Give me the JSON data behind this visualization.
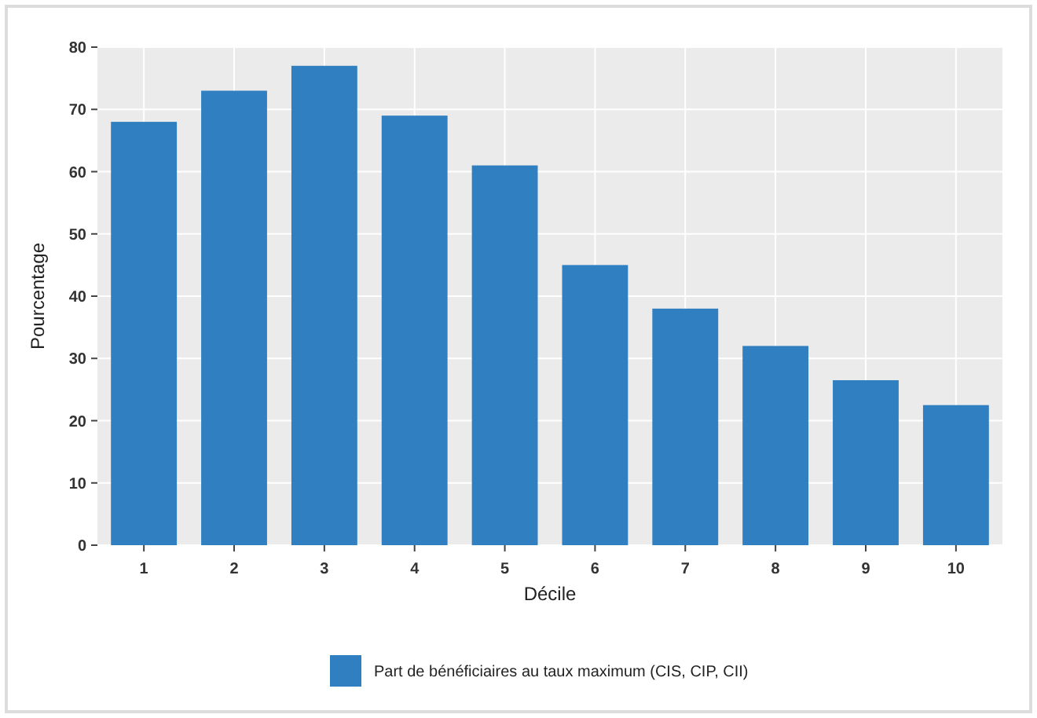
{
  "chart_data": {
    "type": "bar",
    "xlabel": "Décile",
    "ylabel": "Pourcentage",
    "categories": [
      "1",
      "2",
      "3",
      "4",
      "5",
      "6",
      "7",
      "8",
      "9",
      "10"
    ],
    "series": [
      {
        "name": "Part de bénéficiaires au taux maximum (CIS, CIP, CII)",
        "color": "#2f7fc1",
        "values": [
          68,
          73,
          77,
          69,
          61,
          45,
          38,
          32,
          26.5,
          22.5
        ]
      }
    ],
    "ylim": [
      0,
      80
    ],
    "yticks": [
      0,
      10,
      20,
      30,
      40,
      50,
      60,
      70,
      80
    ],
    "grid": true,
    "legend": "bottom"
  }
}
